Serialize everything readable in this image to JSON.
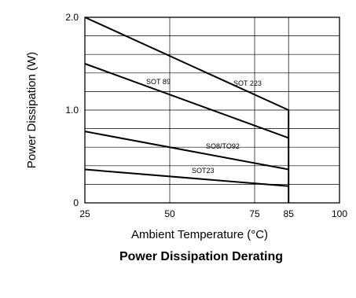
{
  "chart_data": {
    "type": "line",
    "title": "Power Dissipation Derating",
    "xlabel": "Ambient  Temperature (°C)",
    "ylabel": "Power Dissipation (W)",
    "xlim": [
      25,
      100
    ],
    "ylim": [
      0,
      2.0
    ],
    "x_ticks": [
      "25",
      "50",
      "75",
      "85",
      "100"
    ],
    "y_ticks": [
      "0",
      "1.0",
      "2.0"
    ],
    "grid": true,
    "series": [
      {
        "name": "SOT 223",
        "x": [
          25,
          85,
          85
        ],
        "y": [
          2.0,
          1.0,
          0
        ]
      },
      {
        "name": "SOT 89",
        "x": [
          25,
          85
        ],
        "y": [
          1.5,
          0.7
        ]
      },
      {
        "name": "SO8/TO92",
        "x": [
          25,
          85
        ],
        "y": [
          0.77,
          0.36
        ]
      },
      {
        "name": "SOT23",
        "x": [
          25,
          85
        ],
        "y": [
          0.36,
          0.18
        ]
      }
    ],
    "annotations": [
      "SOT 89",
      "SOT 223",
      "SO8/TO92",
      "SOT23"
    ]
  }
}
